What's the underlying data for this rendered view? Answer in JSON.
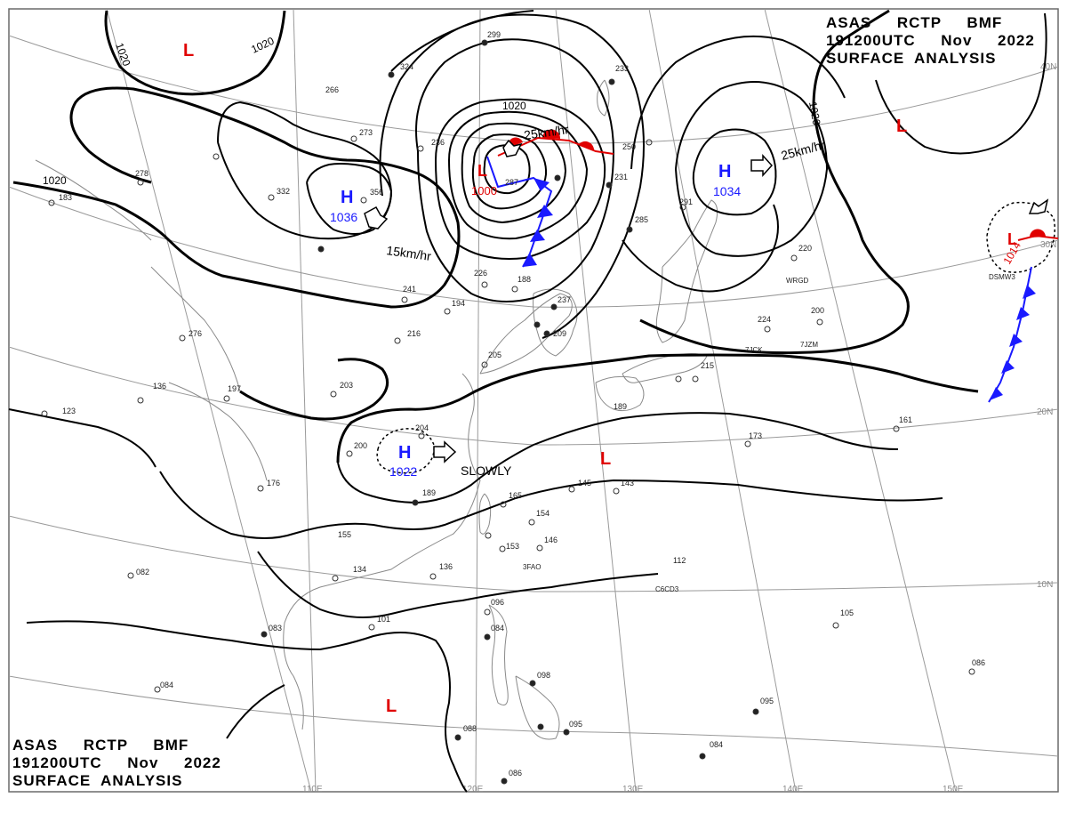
{
  "header": {
    "line1": "ASAS     RCTP     BMF",
    "line2": "191200UTC     Nov     2022",
    "line3": "SURFACE  ANALYSIS"
  },
  "grid": {
    "lat_labels": [
      "40N",
      "30N",
      "20N",
      "10N"
    ],
    "lon_labels": [
      "110E",
      "120E",
      "130E",
      "140E",
      "150E"
    ]
  },
  "isobar_labels": [
    "1020",
    "1020",
    "1020",
    "1020"
  ],
  "pressure_centers": [
    {
      "type": "H",
      "value": "1036"
    },
    {
      "type": "H",
      "value": "1034"
    },
    {
      "type": "H",
      "value": "1022"
    },
    {
      "type": "L",
      "value": "1000"
    },
    {
      "type": "L",
      "value": "1014"
    },
    {
      "type": "L",
      "value": ""
    },
    {
      "type": "L",
      "value": ""
    },
    {
      "type": "L",
      "value": ""
    },
    {
      "type": "L",
      "value": ""
    }
  ],
  "movements": [
    "25km/hr",
    "25km/hr",
    "15km/hr",
    "SLOWLY"
  ],
  "station_labels": [
    "299",
    "324",
    "266",
    "273",
    "236",
    "332",
    "356",
    "278",
    "183",
    "233",
    "250",
    "287",
    "231",
    "285",
    "291",
    "220",
    "241",
    "226",
    "188",
    "194",
    "237",
    "209",
    "216",
    "276",
    "203",
    "197",
    "136",
    "123",
    "205",
    "215",
    "224",
    "200",
    "204",
    "189",
    "173",
    "161",
    "165",
    "154",
    "146",
    "153",
    "145",
    "143",
    "112",
    "136",
    "134",
    "082",
    "083",
    "101",
    "096",
    "084",
    "098",
    "086",
    "095",
    "095",
    "088",
    "086",
    "084",
    "105",
    "084",
    "176",
    "200",
    "155",
    "189",
    "WRGD",
    "7JCK",
    "7JZM",
    "3FAO",
    "C6CD3",
    "DSMW3"
  ],
  "colors": {
    "isobar": "#000000",
    "high": "#1a1aff",
    "low": "#e00000",
    "cold_front": "#1a1aff",
    "warm_front": "#e00000",
    "grid": "#9a9a9a",
    "coast": "#8a8a8a"
  }
}
